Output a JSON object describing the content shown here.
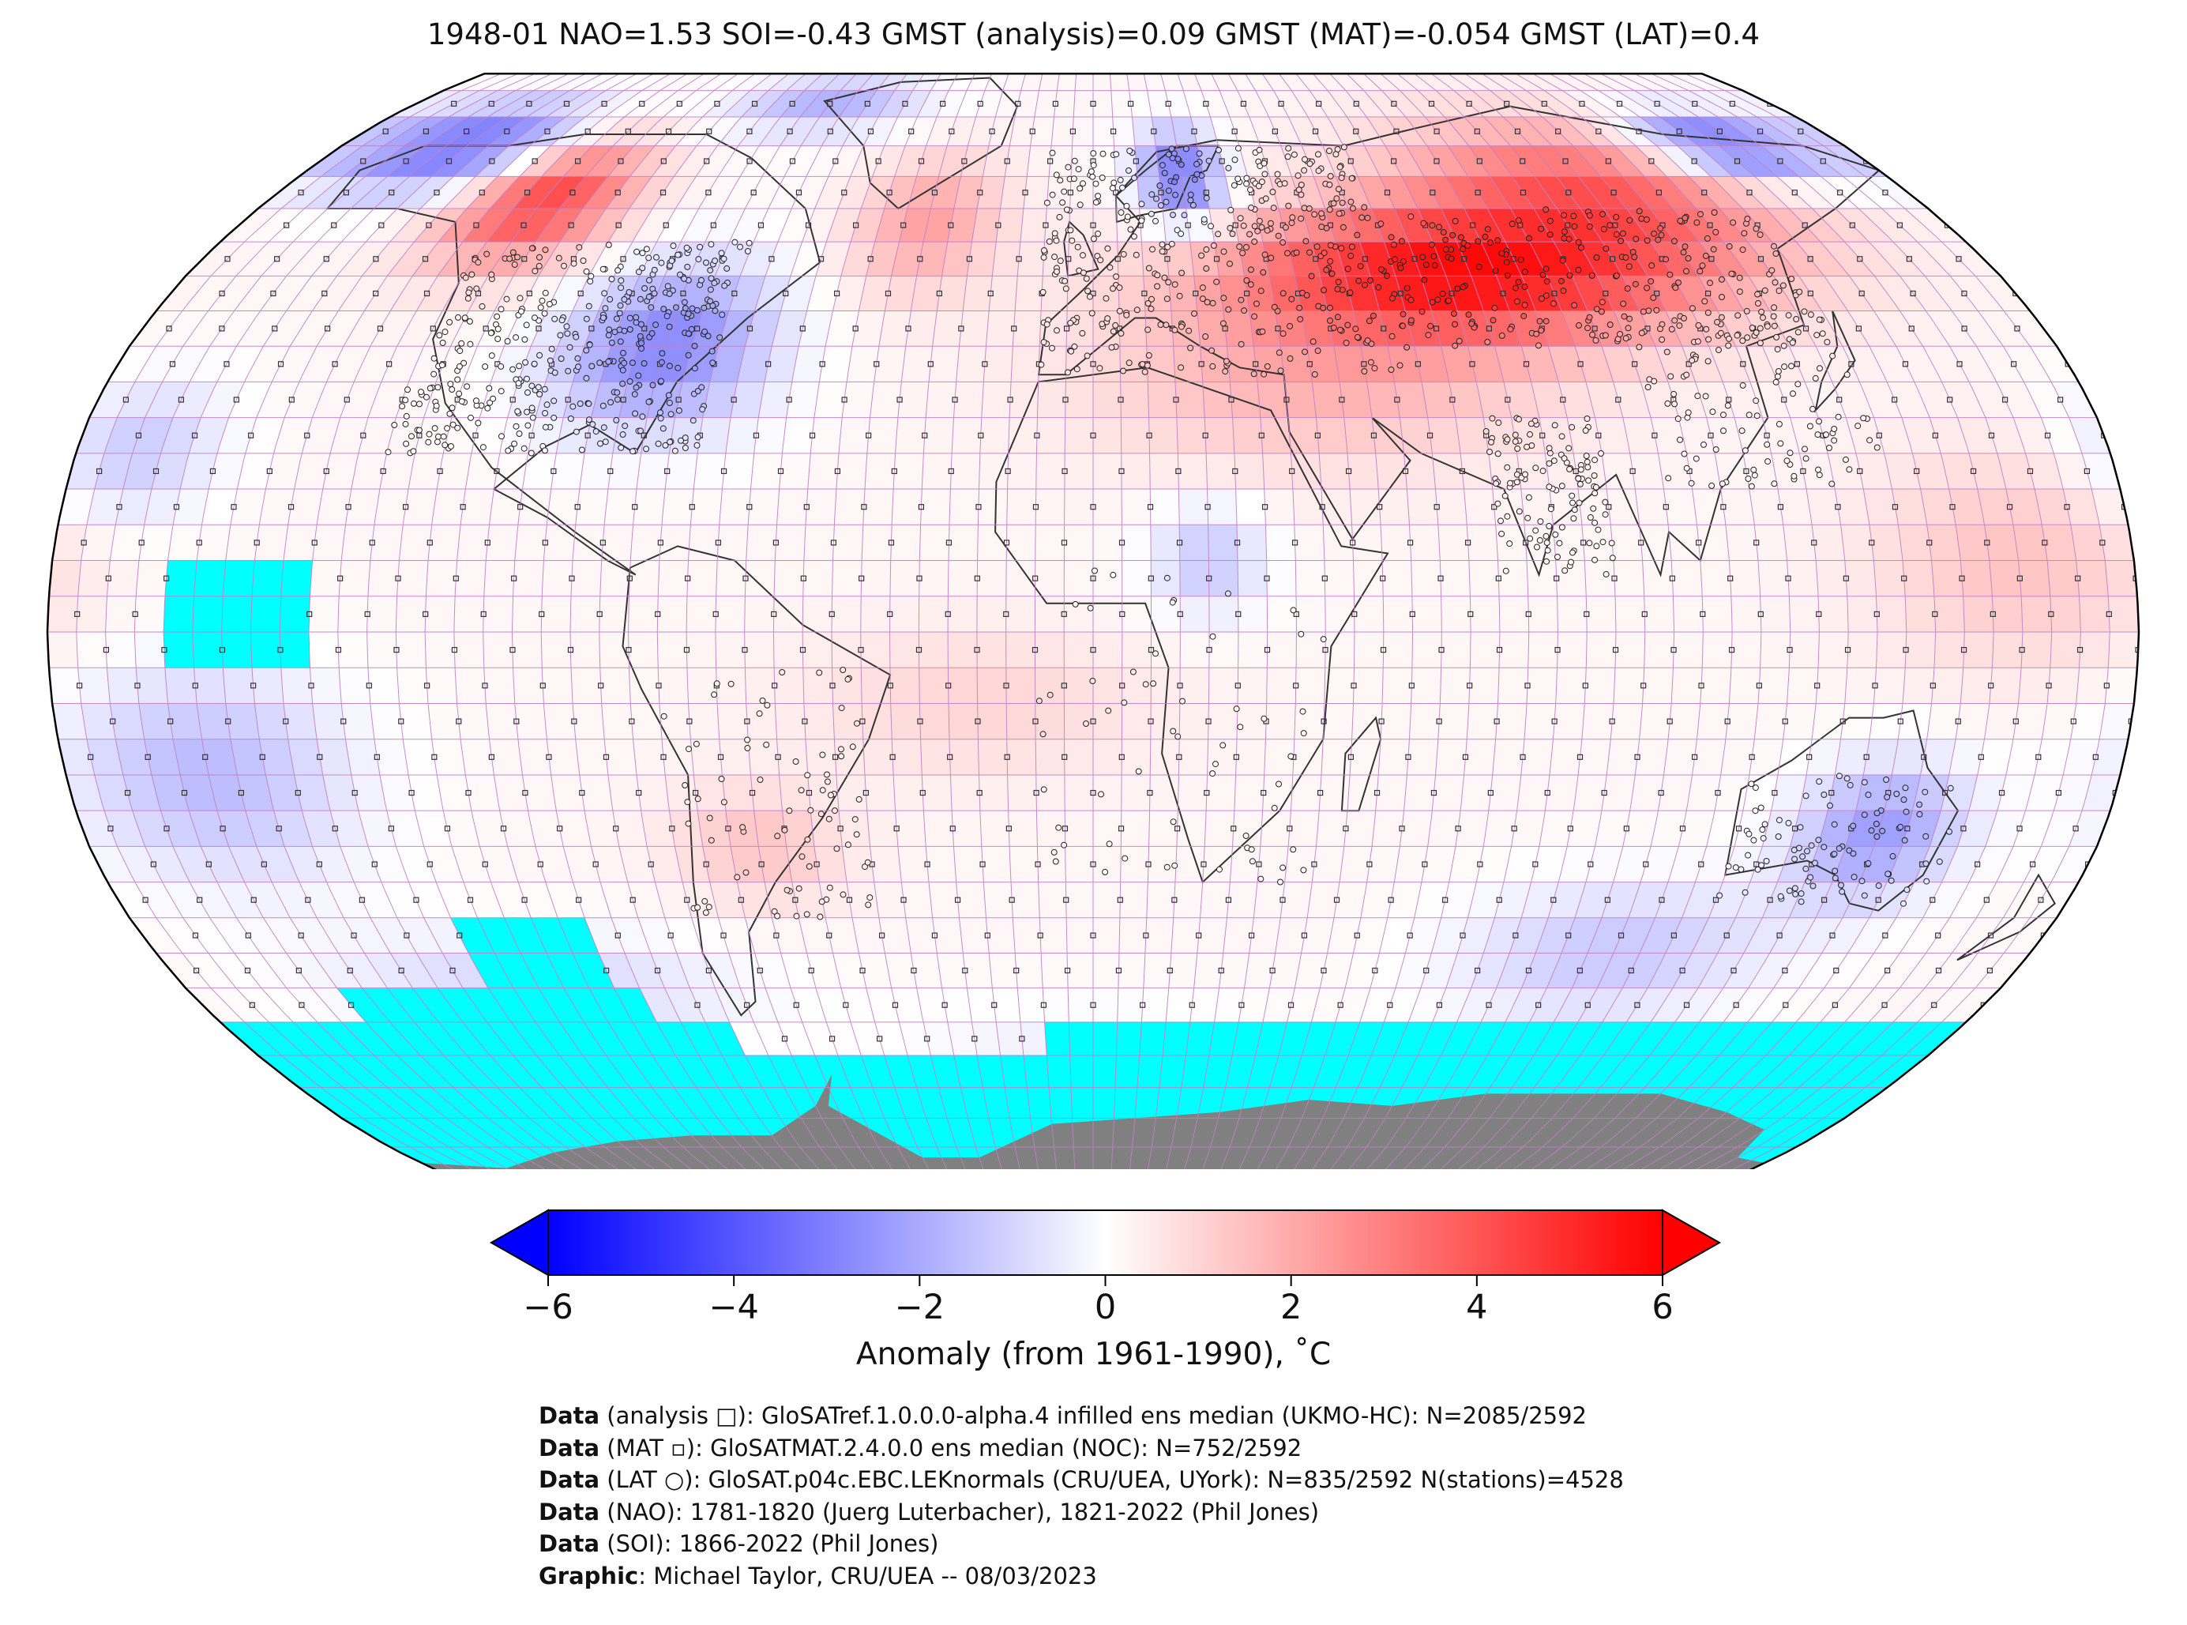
{
  "title": "1948-01 NAO=1.53 SOI=-0.43 GMST (analysis)=0.09 GMST (MAT)=-0.054 GMST (LAT)=0.4",
  "colorbar": {
    "ticks": [
      "−6",
      "−4",
      "−2",
      "0",
      "2",
      "4",
      "6"
    ],
    "label": "Anomaly (from 1961-1990), ˚C",
    "range": [
      -6,
      6
    ],
    "colors": {
      "low": "#0000ff",
      "mid": "#ffffff",
      "high": "#ff0000"
    }
  },
  "map": {
    "land_missing_color": "#808080",
    "ocean_missing_color": "#00ffff",
    "grid_color": "#c07fc7",
    "projection": "Robinson"
  },
  "credits": [
    {
      "key": "Data",
      "text": " (analysis □): GloSATref.1.0.0.0-alpha.4 infilled ens median (UKMO-HC): N=2085/2592"
    },
    {
      "key": "Data",
      "text": " (MAT ▫): GloSATMAT.2.4.0.0 ens median (NOC): N=752/2592"
    },
    {
      "key": "Data",
      "text": " (LAT ○): GloSAT.p04c.EBC.LEKnormals (CRU/UEA, UYork): N=835/2592 N(stations)=4528"
    },
    {
      "key": "Data",
      "text": " (NAO): 1781-1820 (Juerg Luterbacher), 1821-2022 (Phil Jones)"
    },
    {
      "key": "Data",
      "text": " (SOI): 1866-2022 (Phil Jones)"
    },
    {
      "key": "Graphic",
      "text": ": Michael Taylor, CRU/UEA -- 08/03/2023"
    }
  ]
}
